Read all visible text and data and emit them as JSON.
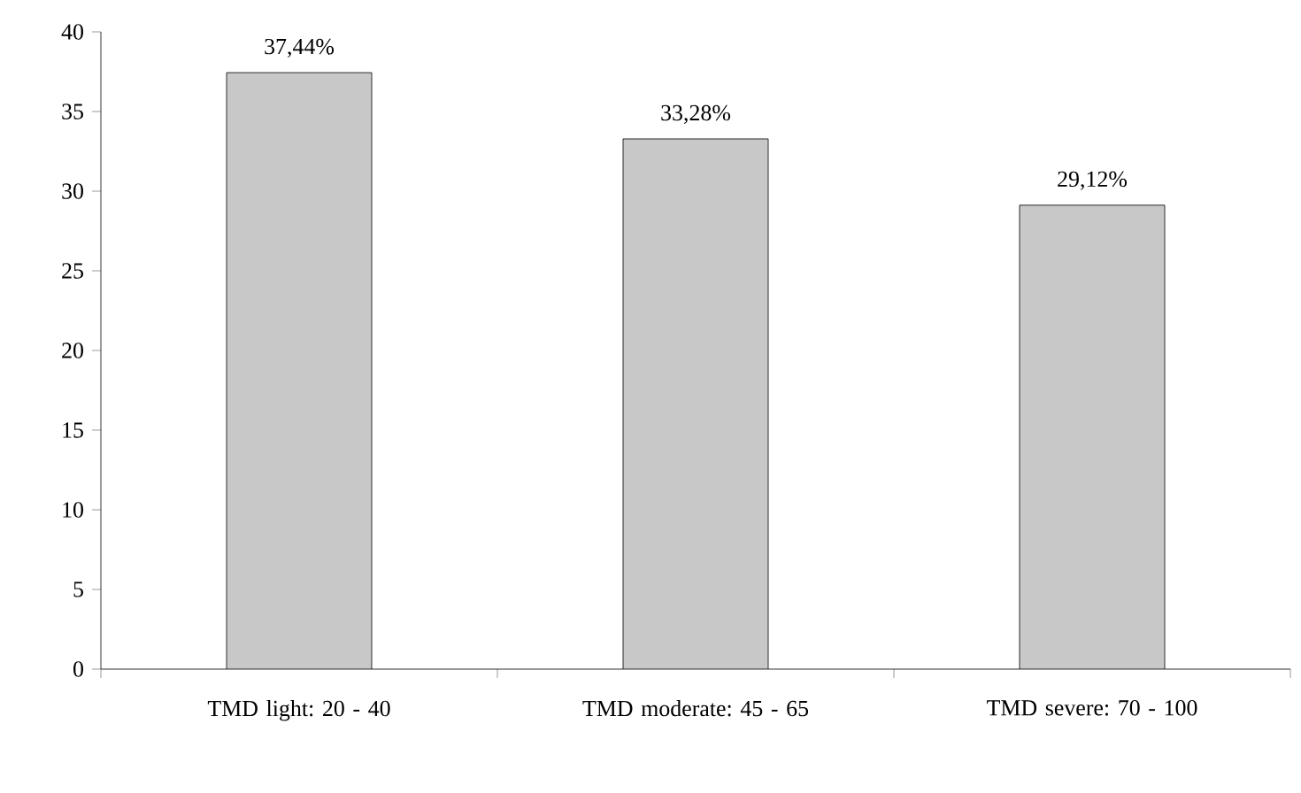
{
  "chart_data": {
    "type": "bar",
    "categories": [
      "TMD light: 20 - 40",
      "TMD moderate: 45 - 65",
      "TMD severe: 70 - 100"
    ],
    "values": [
      37.44,
      33.28,
      29.12
    ],
    "value_labels": [
      "37,44%",
      "33,28%",
      "29,12%"
    ],
    "color": "#c8c8c8",
    "ylim": [
      0,
      40
    ],
    "yticks": [
      0,
      5,
      10,
      15,
      20,
      25,
      30,
      35,
      40
    ],
    "grid": false
  }
}
